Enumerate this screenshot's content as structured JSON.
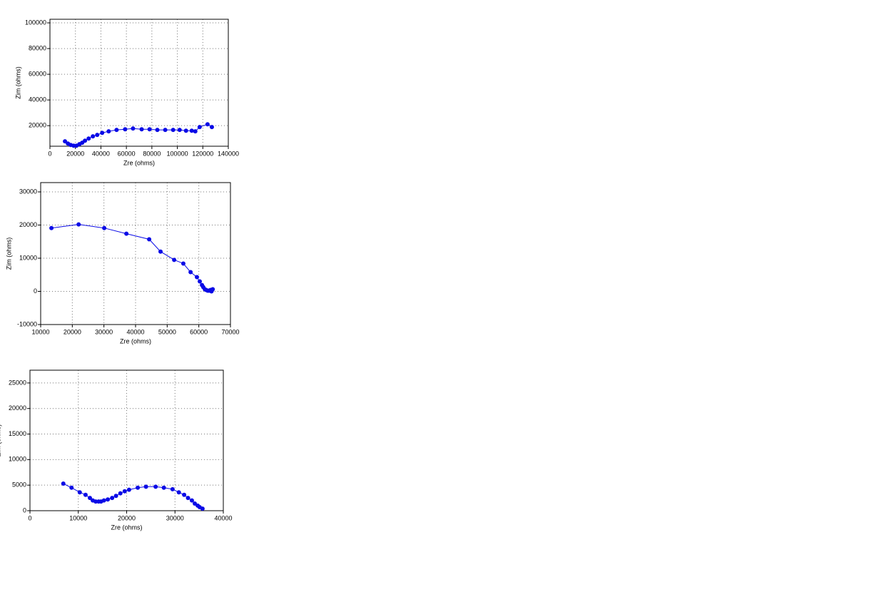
{
  "chart_data": [
    {
      "type": "line",
      "markers": true,
      "color": "#0a0ae6",
      "grid": true,
      "x_label": "Zre (ohms)",
      "y_label": "Zim (ohms)",
      "xlim": [
        0,
        140000
      ],
      "xticks": [
        0,
        20000,
        40000,
        60000,
        80000,
        100000,
        120000,
        140000
      ],
      "ylim": [
        4000,
        102800
      ],
      "yticks": [
        20000,
        40000,
        60000,
        80000,
        100000
      ],
      "x": [
        11800,
        14100,
        16300,
        18600,
        20800,
        23100,
        25300,
        27500,
        30400,
        33700,
        37100,
        41000,
        46100,
        52300,
        59000,
        65200,
        72000,
        78200,
        84300,
        90500,
        96700,
        101800,
        106800,
        111300,
        114100,
        117500,
        123700,
        127100
      ],
      "values": [
        7800,
        6100,
        5000,
        4400,
        4400,
        5600,
        6700,
        8300,
        10000,
        11700,
        12800,
        14400,
        15600,
        16700,
        17200,
        17800,
        17200,
        17200,
        16700,
        16700,
        16700,
        16700,
        16100,
        16100,
        15600,
        18900,
        21100,
        18900
      ]
    },
    {
      "type": "line",
      "markers": true,
      "color": "#0a0ae6",
      "grid": true,
      "x_label": "Zre (ohms)",
      "y_label": "Zim (ohms)",
      "xlim": [
        10000,
        70000
      ],
      "xticks": [
        10000,
        20000,
        30000,
        40000,
        50000,
        60000,
        70000
      ],
      "ylim": [
        -10000,
        32800
      ],
      "yticks": [
        -10000,
        0,
        10000,
        20000,
        30000
      ],
      "x": [
        13400,
        22000,
        30100,
        37100,
        44300,
        47900,
        52200,
        55100,
        57400,
        59400,
        60300,
        61000,
        61400,
        61900,
        62300,
        62800,
        63200,
        63700,
        64100,
        64400,
        64000
      ],
      "values": [
        19100,
        20200,
        19100,
        17400,
        15700,
        12000,
        9500,
        8400,
        5800,
        4300,
        3000,
        1900,
        1300,
        650,
        430,
        220,
        220,
        430,
        220,
        650,
        0
      ]
    },
    {
      "type": "line",
      "markers": true,
      "color": "#0a0ae6",
      "grid": true,
      "x_label": "Zre (ohms)",
      "y_label": "Zim (ohms)",
      "xlim": [
        0,
        40000
      ],
      "xticks": [
        0,
        10000,
        20000,
        30000,
        40000
      ],
      "ylim": [
        0,
        27500
      ],
      "yticks": [
        0,
        5000,
        10000,
        15000,
        20000,
        25000
      ],
      "x": [
        6900,
        8600,
        10300,
        11500,
        12400,
        13000,
        13600,
        14200,
        14700,
        15300,
        16100,
        17000,
        17800,
        18700,
        19600,
        20500,
        22300,
        24000,
        26000,
        27700,
        29500,
        30800,
        31900,
        32700,
        33500,
        34100,
        34700,
        35100,
        35700
      ],
      "values": [
        5300,
        4500,
        3600,
        3100,
        2500,
        2000,
        1800,
        1800,
        1800,
        2000,
        2200,
        2500,
        2900,
        3400,
        3800,
        4100,
        4500,
        4700,
        4700,
        4500,
        4200,
        3600,
        3100,
        2500,
        2000,
        1400,
        1000,
        700,
        400
      ]
    }
  ]
}
